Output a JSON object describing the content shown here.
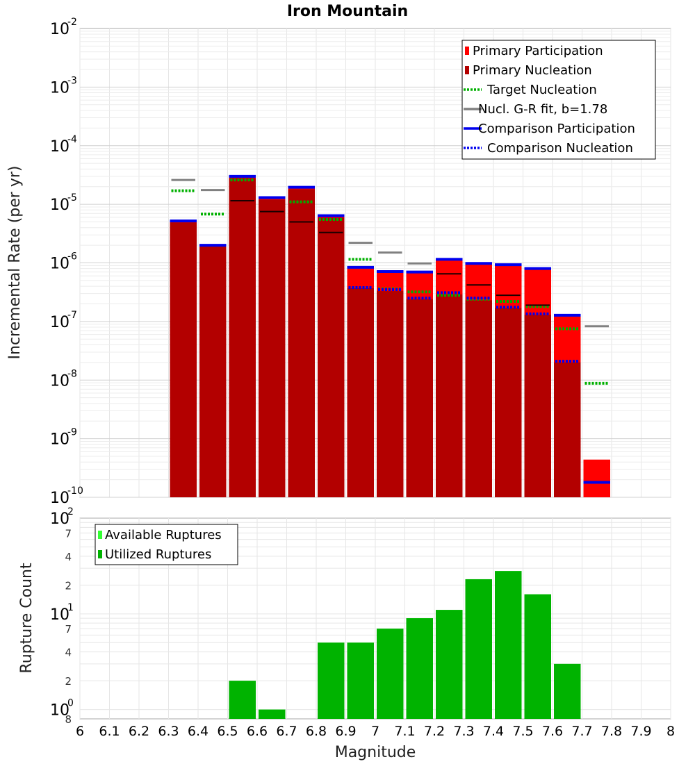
{
  "title": "Iron Mountain",
  "colors": {
    "primary_participation": "#ff0000",
    "primary_nucleation": "#b30000",
    "target_nucleation": "#00b000",
    "gr_fit": "#808080",
    "comparison": "#0000ee",
    "available": "#33ff33",
    "utilized": "#00b300"
  },
  "chart_data": [
    {
      "type": "bar",
      "name": "rates",
      "title": "Iron Mountain",
      "xlabel": "",
      "ylabel": "Incremental Rate (per yr)",
      "yscale": "log",
      "ylim": [
        1e-10,
        0.01
      ],
      "xlim": [
        6.0,
        8.0
      ],
      "bin_width": 0.1,
      "grid": true,
      "legend_position": "top-right",
      "y_tick_exponents": [
        "-2",
        "-3",
        "-4",
        "-5",
        "-6",
        "-7",
        "-8",
        "-9",
        "-10"
      ],
      "bins": [
        6.35,
        6.45,
        6.55,
        6.65,
        6.75,
        6.85,
        6.95,
        7.05,
        7.15,
        7.25,
        7.35,
        7.45,
        7.55,
        7.65,
        7.75
      ],
      "series": [
        {
          "name": "Primary Participation",
          "kind": "bar",
          "values": [
            5.2e-06,
            2e-06,
            3e-05,
            1.3e-05,
            1.9e-05,
            6.3e-06,
            8.3e-07,
            7e-07,
            6.9e-07,
            1.1e-06,
            9.5e-07,
            9e-07,
            7.8e-07,
            1.25e-07,
            4.4e-10
          ]
        },
        {
          "name": "Primary Nucleation",
          "kind": "bar",
          "values": [
            4.9e-06,
            1.9e-06,
            2.8e-05,
            1.2e-05,
            1.8e-05,
            5.9e-06,
            3.7e-07,
            3.3e-07,
            2.4e-07,
            2.9e-07,
            2.3e-07,
            1.7e-07,
            1.3e-07,
            2e-08,
            null
          ]
        },
        {
          "name": "Target Nucleation",
          "kind": "dotted-line",
          "values": [
            1.7e-05,
            6.8e-06,
            2.6e-05,
            null,
            1.1e-05,
            5.5e-06,
            1.15e-06,
            3.6e-07,
            3.2e-07,
            2.8e-07,
            2.4e-07,
            2.2e-07,
            1.8e-07,
            7.5e-08,
            8.8e-09
          ]
        },
        {
          "name": "Nucl. G-R fit, b=1.78",
          "kind": "line",
          "values": [
            2.6e-05,
            1.75e-05,
            null,
            null,
            null,
            null,
            2.2e-06,
            1.5e-06,
            9.8e-07,
            null,
            null,
            null,
            null,
            null,
            8.3e-08
          ]
        },
        {
          "name": "Comparison Participation",
          "kind": "line",
          "values": [
            5.2e-06,
            2e-06,
            3e-05,
            1.3e-05,
            1.95e-05,
            6.4e-06,
            8.4e-07,
            7.1e-07,
            7e-07,
            1.15e-06,
            9.8e-07,
            9.3e-07,
            8e-07,
            1.28e-07,
            1.8e-10
          ]
        },
        {
          "name": "Comparison Nucleation",
          "kind": "dotted-line",
          "values": [
            null,
            null,
            null,
            null,
            null,
            null,
            3.8e-07,
            3.5e-07,
            2.5e-07,
            3.1e-07,
            2.5e-07,
            1.75e-07,
            1.35e-07,
            2.1e-08,
            null
          ]
        },
        {
          "name": "",
          "kind": "dark-line",
          "values": [
            null,
            null,
            1.15e-05,
            7.5e-06,
            5e-06,
            3.3e-06,
            null,
            null,
            null,
            6.5e-07,
            4.2e-07,
            2.8e-07,
            1.9e-07,
            null,
            null
          ]
        }
      ]
    },
    {
      "type": "bar",
      "name": "counts",
      "xlabel": "Magnitude",
      "ylabel": "Rupture Count",
      "yscale": "log",
      "ylim": [
        0.8,
        100
      ],
      "xlim": [
        6.0,
        8.0
      ],
      "bin_width": 0.1,
      "grid": true,
      "legend_position": "top-left",
      "y_tick_exponents": [
        "2",
        "1",
        "0"
      ],
      "y_minor_labels": [
        "7",
        "4",
        "2",
        "7",
        "4",
        "2",
        "8"
      ],
      "x_tick_labels": [
        "6",
        "6.1",
        "6.2",
        "6.3",
        "6.4",
        "6.5",
        "6.6",
        "6.7",
        "6.8",
        "6.9",
        "7",
        "7.1",
        "7.2",
        "7.3",
        "7.4",
        "7.5",
        "7.6",
        "7.7",
        "7.8",
        "7.9",
        "8"
      ],
      "bins": [
        6.55,
        6.65,
        6.85,
        6.95,
        7.05,
        7.15,
        7.25,
        7.35,
        7.45,
        7.55,
        7.65
      ],
      "series": [
        {
          "name": "Available Ruptures",
          "values": [
            2,
            1,
            5,
            5,
            7,
            9,
            11,
            23,
            28,
            16,
            3
          ]
        },
        {
          "name": "Utilized Ruptures",
          "values": [
            2,
            1,
            5,
            5,
            7,
            9,
            11,
            23,
            28,
            16,
            3
          ]
        }
      ]
    }
  ],
  "legend_top": [
    {
      "label": "Primary Participation",
      "kind": "bar",
      "color_key": "primary_participation"
    },
    {
      "label": "Primary Nucleation",
      "kind": "bar",
      "color_key": "primary_nucleation"
    },
    {
      "label": "Target Nucleation",
      "kind": "dotted",
      "color_key": "target_nucleation"
    },
    {
      "label": "Nucl. G-R fit, b=1.78",
      "kind": "line",
      "color_key": "gr_fit"
    },
    {
      "label": "Comparison Participation",
      "kind": "line",
      "color_key": "comparison"
    },
    {
      "label": "Comparison Nucleation",
      "kind": "dotted",
      "color_key": "comparison"
    }
  ],
  "legend_bottom": [
    {
      "label": "Available Ruptures",
      "kind": "bar",
      "color_key": "available"
    },
    {
      "label": "Utilized Ruptures",
      "kind": "bar",
      "color_key": "utilized"
    }
  ]
}
